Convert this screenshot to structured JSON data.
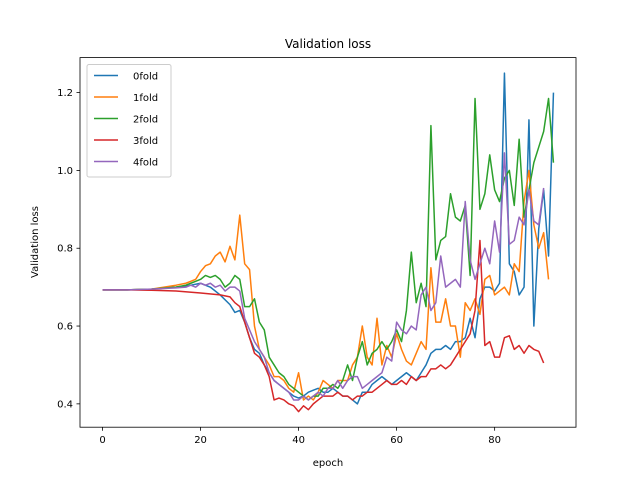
{
  "chart_data": {
    "type": "line",
    "title": "Validation loss",
    "xlabel": "epoch",
    "ylabel": "Validation loss",
    "xlim": [
      -4.6,
      96.6
    ],
    "ylim": [
      0.34,
      1.29
    ],
    "xticks": [
      0,
      20,
      40,
      60,
      80
    ],
    "yticks": [
      0.4,
      0.6,
      0.8,
      1.0,
      1.2
    ],
    "grid": false,
    "legend_position": "top-left",
    "series": [
      {
        "name": "0fold",
        "color": "#1f77b4",
        "x": [
          0,
          5,
          10,
          15,
          18,
          20,
          22,
          24,
          26,
          27,
          28,
          29,
          30,
          31,
          32,
          33,
          34,
          35,
          36,
          37,
          38,
          39,
          40,
          41,
          42,
          43,
          44,
          45,
          46,
          47,
          48,
          49,
          50,
          51,
          52,
          53,
          54,
          55,
          56,
          57,
          58,
          59,
          60,
          61,
          62,
          63,
          64,
          65,
          66,
          67,
          68,
          69,
          70,
          71,
          72,
          73,
          74,
          75,
          76,
          77,
          78,
          79,
          80,
          81,
          82,
          83,
          84,
          85,
          86,
          87,
          88,
          89,
          90,
          91,
          92
        ],
        "values": [
          0.693,
          0.693,
          0.695,
          0.7,
          0.705,
          0.71,
          0.7,
          0.68,
          0.655,
          0.635,
          0.64,
          0.61,
          0.57,
          0.54,
          0.53,
          0.5,
          0.48,
          0.46,
          0.45,
          0.44,
          0.43,
          0.42,
          0.415,
          0.42,
          0.43,
          0.435,
          0.44,
          0.43,
          0.43,
          0.44,
          0.43,
          0.42,
          0.42,
          0.41,
          0.4,
          0.43,
          0.43,
          0.45,
          0.46,
          0.47,
          0.46,
          0.45,
          0.46,
          0.47,
          0.48,
          0.47,
          0.46,
          0.48,
          0.5,
          0.53,
          0.54,
          0.54,
          0.55,
          0.54,
          0.56,
          0.56,
          0.57,
          0.62,
          0.57,
          0.67,
          0.7,
          0.7,
          0.69,
          0.71,
          1.25,
          0.76,
          0.74,
          0.68,
          0.7,
          1.13,
          0.6,
          0.85,
          0.95,
          0.78,
          1.2
        ]
      },
      {
        "name": "1fold",
        "color": "#ff7f0e",
        "x": [
          0,
          5,
          10,
          15,
          17,
          18,
          19,
          20,
          21,
          22,
          23,
          24,
          25,
          26,
          27,
          28,
          29,
          30,
          31,
          32,
          33,
          34,
          35,
          36,
          37,
          38,
          39,
          40,
          41,
          42,
          43,
          44,
          45,
          46,
          47,
          48,
          49,
          50,
          51,
          52,
          53,
          54,
          55,
          56,
          57,
          58,
          59,
          60,
          61,
          62,
          63,
          64,
          65,
          66,
          67,
          68,
          69,
          70,
          71,
          72,
          73,
          74,
          75,
          76,
          77,
          78,
          79,
          80,
          81,
          82,
          83,
          84,
          85,
          86,
          87,
          88,
          89,
          90,
          91
        ],
        "values": [
          0.693,
          0.693,
          0.695,
          0.705,
          0.71,
          0.715,
          0.72,
          0.74,
          0.755,
          0.76,
          0.78,
          0.79,
          0.765,
          0.805,
          0.77,
          0.885,
          0.76,
          0.745,
          0.6,
          0.54,
          0.52,
          0.5,
          0.47,
          0.47,
          0.46,
          0.44,
          0.43,
          0.48,
          0.41,
          0.42,
          0.41,
          0.43,
          0.46,
          0.45,
          0.44,
          0.46,
          0.46,
          0.46,
          0.5,
          0.52,
          0.6,
          0.52,
          0.5,
          0.62,
          0.5,
          0.55,
          0.52,
          0.58,
          0.54,
          0.51,
          0.5,
          0.53,
          0.56,
          0.54,
          0.75,
          0.61,
          0.61,
          0.67,
          0.6,
          0.6,
          0.52,
          0.66,
          0.64,
          0.67,
          0.63,
          0.72,
          0.73,
          0.68,
          0.69,
          0.7,
          0.68,
          0.76,
          0.74,
          0.92,
          1.0,
          0.86,
          0.8,
          0.84,
          0.72
        ]
      },
      {
        "name": "2fold",
        "color": "#2ca02c",
        "x": [
          0,
          5,
          10,
          15,
          17,
          18,
          19,
          20,
          21,
          22,
          23,
          24,
          25,
          26,
          27,
          28,
          29,
          30,
          31,
          32,
          33,
          34,
          35,
          36,
          37,
          38,
          39,
          40,
          41,
          42,
          43,
          44,
          45,
          46,
          47,
          48,
          49,
          50,
          51,
          52,
          53,
          54,
          55,
          56,
          57,
          58,
          59,
          60,
          61,
          62,
          63,
          64,
          65,
          66,
          67,
          68,
          69,
          70,
          71,
          72,
          73,
          74,
          75,
          76,
          77,
          78,
          79,
          80,
          81,
          82,
          83,
          84,
          85,
          86,
          87,
          88,
          89,
          90,
          91,
          92
        ],
        "values": [
          0.693,
          0.693,
          0.695,
          0.7,
          0.705,
          0.71,
          0.715,
          0.72,
          0.73,
          0.725,
          0.73,
          0.72,
          0.7,
          0.71,
          0.73,
          0.72,
          0.65,
          0.65,
          0.67,
          0.61,
          0.59,
          0.52,
          0.5,
          0.48,
          0.47,
          0.45,
          0.44,
          0.43,
          0.42,
          0.41,
          0.42,
          0.42,
          0.44,
          0.44,
          0.45,
          0.44,
          0.46,
          0.5,
          0.46,
          0.52,
          0.56,
          0.5,
          0.53,
          0.54,
          0.56,
          0.54,
          0.56,
          0.59,
          0.56,
          0.64,
          0.79,
          0.66,
          0.71,
          0.65,
          1.115,
          0.77,
          0.82,
          0.83,
          0.94,
          0.88,
          0.87,
          0.91,
          0.73,
          1.185,
          0.9,
          0.94,
          1.04,
          0.95,
          0.92,
          0.98,
          1.0,
          0.91,
          1.08,
          0.88,
          0.95,
          1.02,
          1.06,
          1.1,
          1.185,
          1.02
        ]
      },
      {
        "name": "3fold",
        "color": "#d62728",
        "x": [
          0,
          5,
          10,
          15,
          20,
          24,
          26,
          27,
          28,
          29,
          30,
          31,
          32,
          33,
          34,
          35,
          36,
          37,
          38,
          39,
          40,
          41,
          42,
          43,
          44,
          45,
          46,
          47,
          48,
          49,
          50,
          51,
          52,
          53,
          54,
          55,
          56,
          57,
          58,
          59,
          60,
          61,
          62,
          63,
          64,
          65,
          66,
          67,
          68,
          69,
          70,
          71,
          72,
          73,
          74,
          75,
          76,
          77,
          78,
          79,
          80,
          81,
          82,
          83,
          84,
          85,
          86,
          87,
          88,
          89,
          90
        ],
        "values": [
          0.693,
          0.693,
          0.692,
          0.69,
          0.685,
          0.68,
          0.675,
          0.66,
          0.65,
          0.61,
          0.57,
          0.53,
          0.52,
          0.5,
          0.47,
          0.41,
          0.415,
          0.41,
          0.4,
          0.395,
          0.38,
          0.395,
          0.385,
          0.4,
          0.41,
          0.42,
          0.42,
          0.42,
          0.43,
          0.42,
          0.42,
          0.41,
          0.42,
          0.42,
          0.43,
          0.43,
          0.44,
          0.45,
          0.46,
          0.45,
          0.45,
          0.46,
          0.45,
          0.47,
          0.46,
          0.47,
          0.47,
          0.49,
          0.49,
          0.5,
          0.49,
          0.5,
          0.52,
          0.54,
          0.56,
          0.58,
          0.64,
          0.82,
          0.55,
          0.56,
          0.52,
          0.52,
          0.57,
          0.575,
          0.54,
          0.55,
          0.53,
          0.55,
          0.54,
          0.535,
          0.505
        ]
      },
      {
        "name": "4fold",
        "color": "#9467bd",
        "x": [
          0,
          5,
          10,
          15,
          17,
          18,
          19,
          20,
          21,
          22,
          23,
          24,
          25,
          26,
          27,
          28,
          29,
          30,
          31,
          32,
          33,
          34,
          35,
          36,
          37,
          38,
          39,
          40,
          41,
          42,
          43,
          44,
          45,
          46,
          47,
          48,
          49,
          50,
          51,
          52,
          53,
          54,
          55,
          56,
          57,
          58,
          59,
          60,
          61,
          62,
          63,
          64,
          65,
          66,
          67,
          68,
          69,
          70,
          71,
          72,
          73,
          74,
          75,
          76,
          77,
          78,
          79,
          80,
          81,
          82,
          83,
          84,
          85,
          86,
          87,
          88,
          89,
          90
        ],
        "values": [
          0.693,
          0.693,
          0.695,
          0.698,
          0.7,
          0.705,
          0.7,
          0.71,
          0.705,
          0.71,
          0.7,
          0.705,
          0.69,
          0.7,
          0.7,
          0.69,
          0.62,
          0.59,
          0.56,
          0.54,
          0.52,
          0.48,
          0.46,
          0.45,
          0.44,
          0.43,
          0.41,
          0.41,
          0.42,
          0.41,
          0.42,
          0.43,
          0.42,
          0.44,
          0.44,
          0.46,
          0.44,
          0.46,
          0.47,
          0.47,
          0.44,
          0.45,
          0.46,
          0.47,
          0.48,
          0.52,
          0.51,
          0.61,
          0.59,
          0.58,
          0.6,
          0.59,
          0.68,
          0.7,
          0.64,
          0.66,
          0.78,
          0.7,
          0.71,
          0.72,
          0.7,
          0.92,
          0.77,
          0.72,
          0.76,
          0.8,
          0.76,
          0.87,
          0.79,
          1.045,
          0.81,
          0.82,
          0.88,
          0.86,
          0.95,
          0.87,
          0.86,
          0.955
        ]
      }
    ]
  }
}
